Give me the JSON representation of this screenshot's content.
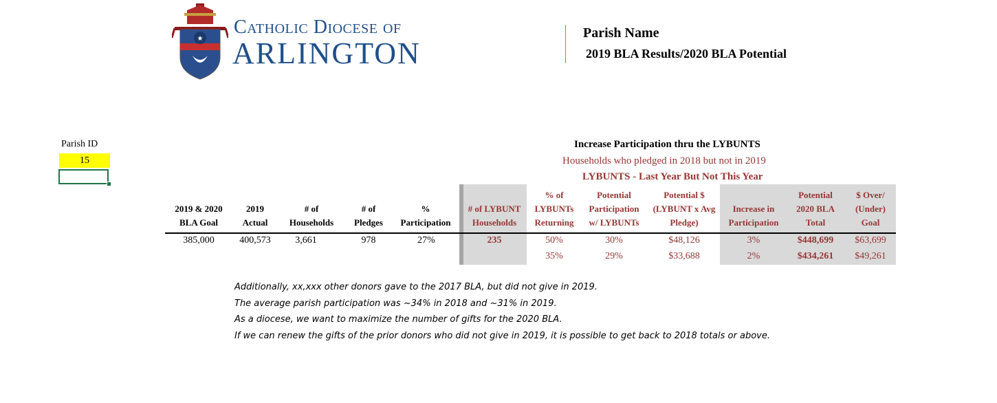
{
  "logo": {
    "line1": "Catholic Diocese of",
    "line2": "ARLINGTON"
  },
  "header": {
    "parish_name": "Parish Name",
    "report_title": "2019 BLA Results/2020 BLA Potential"
  },
  "parish_id": {
    "label": "Parish ID",
    "value": "15"
  },
  "lybunt_section": {
    "title": "Increase Participation thru the LYBUNTS",
    "subtitle": "Households who pledged in 2018 but not in 2019",
    "definition": "LYBUNTS - Last Year But Not This Year"
  },
  "columns": {
    "goal": [
      "2019 & 2020",
      "BLA Goal"
    ],
    "actual": [
      "2019",
      "Actual"
    ],
    "households": [
      "# of",
      "Households"
    ],
    "pledges": [
      "# of",
      "Pledges"
    ],
    "participation": [
      "%",
      "Participation"
    ],
    "lybunt_households": [
      "# of LYBUNT",
      "Households"
    ],
    "pct_returning": [
      "% of",
      "LYBUNTs",
      "Returning"
    ],
    "potential_participation": [
      "Potential",
      "Participation",
      "w/ LYBUNTs"
    ],
    "potential_dollars": [
      "Potential $",
      "(LYBUNT x Avg",
      "Pledge)"
    ],
    "increase_participation": [
      "Increase in",
      "Participation"
    ],
    "potential_total": [
      "Potential",
      "2020 BLA",
      "Total"
    ],
    "over_under": [
      "$ Over/",
      "(Under)",
      "Goal"
    ]
  },
  "row1": {
    "goal": "385,000",
    "actual": "400,573",
    "households": "3,661",
    "pledges": "978",
    "participation": "27%",
    "lybunt_households": "235",
    "pct_returning": "50%",
    "potential_participation": "30%",
    "potential_dollars": "$48,126",
    "increase_participation": "3%",
    "potential_total": "$448,699",
    "over_under": "$63,699"
  },
  "row2": {
    "pct_returning": "35%",
    "potential_participation": "29%",
    "potential_dollars": "$33,688",
    "increase_participation": "2%",
    "potential_total": "$434,261",
    "over_under": "$49,261"
  },
  "notes": [
    "Additionally, xx,xxx other donors gave to the 2017 BLA, but did not give in 2019.",
    "The average parish participation was ~34% in 2018 and ~31% in 2019.",
    "As a diocese, we want to maximize the number of gifts for the 2020 BLA.",
    "If we can renew the gifts of the prior donors who did not give in 2019, it is possible to get back to 2018 totals or above."
  ],
  "colors": {
    "title_blue": "#1f4f8b",
    "accent_red": "#963634",
    "highlight_yellow": "#ffff00",
    "shade_gray": "#d9d9d9"
  }
}
